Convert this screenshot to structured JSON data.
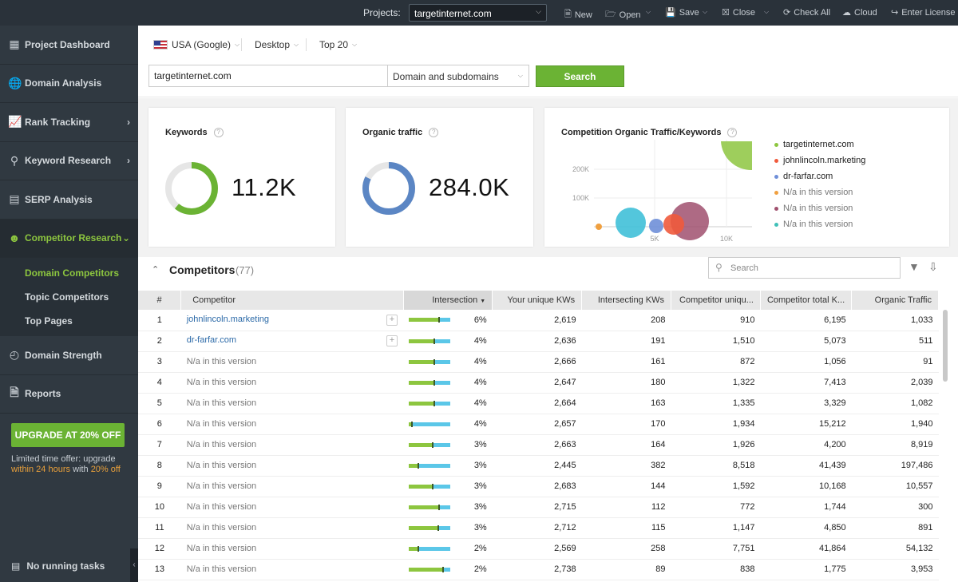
{
  "topbar": {
    "projects_label": "Projects:",
    "project_value": "targetinternet.com",
    "buttons": {
      "new": "New",
      "open": "Open",
      "save": "Save",
      "close": "Close",
      "check_all": "Check All",
      "cloud": "Cloud",
      "enter_license": "Enter License"
    }
  },
  "sidebar": {
    "items": [
      {
        "label": "Project Dashboard"
      },
      {
        "label": "Domain Analysis"
      },
      {
        "label": "Rank Tracking"
      },
      {
        "label": "Keyword Research"
      },
      {
        "label": "SERP Analysis"
      },
      {
        "label": "Competitor Research"
      },
      {
        "label": "Domain Strength"
      },
      {
        "label": "Reports"
      }
    ],
    "sub_items": [
      "Domain Competitors",
      "Topic Competitors",
      "Top Pages"
    ],
    "upgrade_label": "UPGRADE AT 20% OFF",
    "offer_line1": "Limited time offer: upgrade",
    "offer_hl1": "within 24 hours",
    "offer_mid": "with",
    "offer_hl2": "20% off",
    "tasks_label": "No running tasks"
  },
  "filters": {
    "location": "USA (Google)",
    "device": "Desktop",
    "top": "Top 20",
    "domain_value": "targetinternet.com",
    "scope": "Domain and subdomains",
    "search_label": "Search"
  },
  "cards": {
    "keywords": {
      "title": "Keywords",
      "value": "11.2K"
    },
    "traffic": {
      "title": "Organic traffic",
      "value": "284.0K"
    },
    "competition": {
      "title": "Competition Organic Traffic/Keywords",
      "y_ticks": [
        "200K",
        "100K"
      ],
      "x_ticks": [
        "5K",
        "10K"
      ],
      "legend": [
        {
          "name": "targetinternet.com",
          "color": "#8dc63f"
        },
        {
          "name": "johnlincoln.marketing",
          "color": "#f05a3c"
        },
        {
          "name": "dr-farfar.com",
          "color": "#6f8fd8"
        },
        {
          "name": "N/a in this version",
          "color": "#f0a040"
        },
        {
          "name": "N/a in this version",
          "color": "#a0506e"
        },
        {
          "name": "N/a in this version",
          "color": "#40c0b8"
        }
      ]
    }
  },
  "competitors": {
    "title": "Competitors",
    "count": "(77)",
    "search_placeholder": "Search",
    "columns": [
      "#",
      "Competitor",
      "Intersection",
      "Your unique KWs",
      "Intersecting KWs",
      "Competitor uniqu...",
      "Competitor total K...",
      "Organic Traffic"
    ],
    "rows": [
      {
        "n": "1",
        "name": "johnlincoln.marketing",
        "link": true,
        "pct": "6%",
        "frac": 0.72,
        "your": "2,619",
        "inter": "208",
        "cu": "910",
        "ct": "6,195",
        "traffic": "1,033"
      },
      {
        "n": "2",
        "name": "dr-farfar.com",
        "link": true,
        "pct": "4%",
        "frac": 0.6,
        "your": "2,636",
        "inter": "191",
        "cu": "1,510",
        "ct": "5,073",
        "traffic": "511"
      },
      {
        "n": "3",
        "name": "N/a in this version",
        "link": false,
        "pct": "4%",
        "frac": 0.6,
        "your": "2,666",
        "inter": "161",
        "cu": "872",
        "ct": "1,056",
        "traffic": "91"
      },
      {
        "n": "4",
        "name": "N/a in this version",
        "link": false,
        "pct": "4%",
        "frac": 0.6,
        "your": "2,647",
        "inter": "180",
        "cu": "1,322",
        "ct": "7,413",
        "traffic": "2,039"
      },
      {
        "n": "5",
        "name": "N/a in this version",
        "link": false,
        "pct": "4%",
        "frac": 0.6,
        "your": "2,664",
        "inter": "163",
        "cu": "1,335",
        "ct": "3,329",
        "traffic": "1,082"
      },
      {
        "n": "6",
        "name": "N/a in this version",
        "link": false,
        "pct": "4%",
        "frac": 0.05,
        "your": "2,657",
        "inter": "170",
        "cu": "1,934",
        "ct": "15,212",
        "traffic": "1,940"
      },
      {
        "n": "7",
        "name": "N/a in this version",
        "link": false,
        "pct": "3%",
        "frac": 0.55,
        "your": "2,663",
        "inter": "164",
        "cu": "1,926",
        "ct": "4,200",
        "traffic": "8,919"
      },
      {
        "n": "8",
        "name": "N/a in this version",
        "link": false,
        "pct": "3%",
        "frac": 0.22,
        "your": "2,445",
        "inter": "382",
        "cu": "8,518",
        "ct": "41,439",
        "traffic": "197,486"
      },
      {
        "n": "9",
        "name": "N/a in this version",
        "link": false,
        "pct": "3%",
        "frac": 0.55,
        "your": "2,683",
        "inter": "144",
        "cu": "1,592",
        "ct": "10,168",
        "traffic": "10,557"
      },
      {
        "n": "10",
        "name": "N/a in this version",
        "link": false,
        "pct": "3%",
        "frac": 0.72,
        "your": "2,715",
        "inter": "112",
        "cu": "772",
        "ct": "1,744",
        "traffic": "300"
      },
      {
        "n": "11",
        "name": "N/a in this version",
        "link": false,
        "pct": "3%",
        "frac": 0.7,
        "your": "2,712",
        "inter": "115",
        "cu": "1,147",
        "ct": "4,850",
        "traffic": "891"
      },
      {
        "n": "12",
        "name": "N/a in this version",
        "link": false,
        "pct": "2%",
        "frac": 0.22,
        "your": "2,569",
        "inter": "258",
        "cu": "7,751",
        "ct": "41,864",
        "traffic": "54,132"
      },
      {
        "n": "13",
        "name": "N/a in this version",
        "link": false,
        "pct": "2%",
        "frac": 0.8,
        "your": "2,738",
        "inter": "89",
        "cu": "838",
        "ct": "1,775",
        "traffic": "3,953"
      }
    ]
  }
}
